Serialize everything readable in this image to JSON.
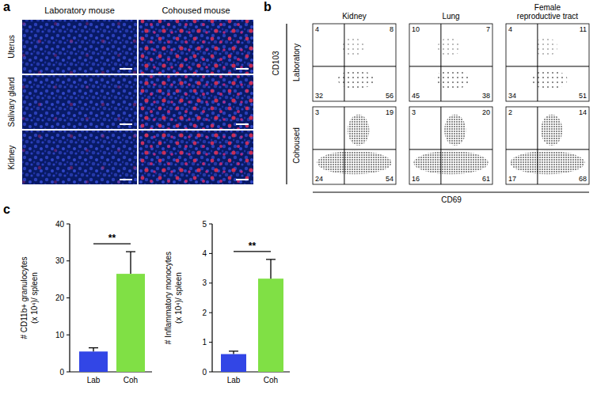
{
  "panel_labels": [
    "a",
    "b",
    "c"
  ],
  "panel_a": {
    "columns": [
      "Laboratory mouse",
      "Cohoused mouse"
    ],
    "rows": [
      "Uterus",
      "Salivary gland",
      "Kidney"
    ]
  },
  "panel_b": {
    "x_label": "CD69",
    "y_label": "CD103",
    "columns": [
      [
        "Kidney"
      ],
      [
        "Lung"
      ],
      [
        "Female",
        "reproductive tract"
      ]
    ],
    "rows": [
      "Laboratory",
      "Cohoused"
    ],
    "quadrants": [
      [
        [
          4,
          8,
          32,
          56
        ],
        [
          10,
          7,
          45,
          38
        ],
        [
          4,
          11,
          34,
          51
        ]
      ],
      [
        [
          3,
          19,
          24,
          54
        ],
        [
          3,
          20,
          16,
          61
        ],
        [
          2,
          14,
          17,
          68
        ]
      ]
    ]
  },
  "chart_data": [
    {
      "type": "bar",
      "y_label": [
        "# CD11b+ granulocytes",
        "(x 10⁴)/ spleen"
      ],
      "categories": [
        "Lab",
        "Coh"
      ],
      "values": [
        5.5,
        26.5
      ],
      "errors": [
        1.0,
        6.0
      ],
      "colors": [
        "#3246e6",
        "#80e045"
      ],
      "ylim": [
        0,
        40
      ],
      "yticks": [
        0,
        10,
        20,
        30,
        40
      ],
      "annotations": [
        "**"
      ]
    },
    {
      "type": "bar",
      "y_label": [
        "# Inflammatory monocytes",
        "(x 10⁴)/ spleen"
      ],
      "categories": [
        "Lab",
        "Coh"
      ],
      "values": [
        0.6,
        3.15
      ],
      "errors": [
        0.1,
        0.65
      ],
      "colors": [
        "#3246e6",
        "#80e045"
      ],
      "ylim": [
        0,
        5
      ],
      "yticks": [
        0,
        1,
        2,
        3,
        4,
        5
      ],
      "annotations": [
        "**"
      ]
    }
  ]
}
